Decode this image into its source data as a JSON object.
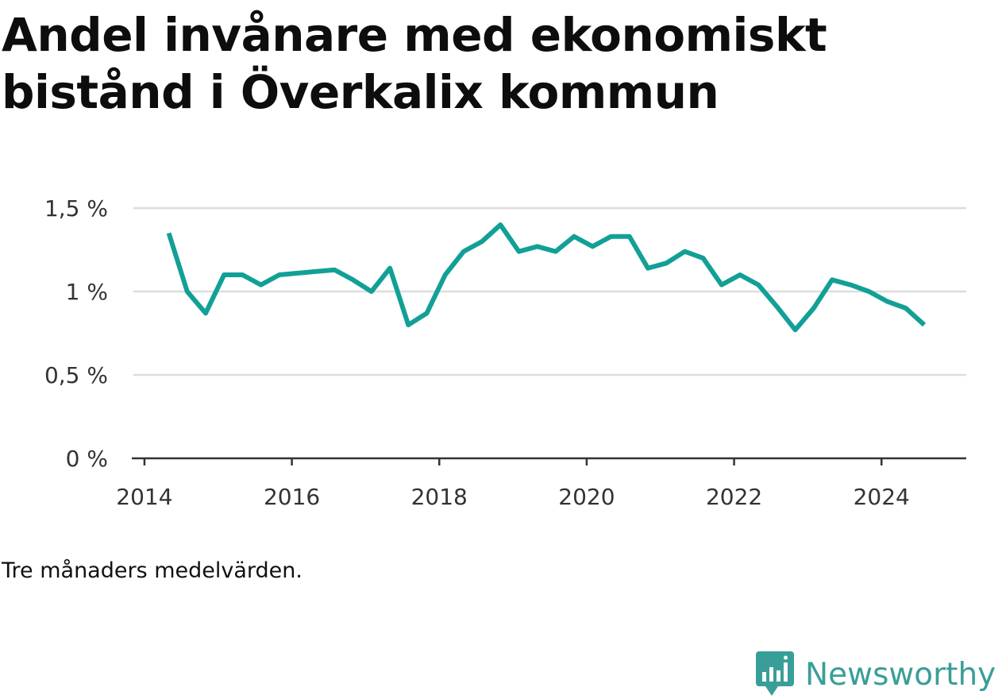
{
  "title": "Andel invånare med ekonomiskt bistånd i Överkalix kommun",
  "note": "Tre månaders medelvärden.",
  "brand": {
    "name": "Newsworthy",
    "logo_icon": "newsworthy-chart-bubble-icon",
    "color": "#3a9e98"
  },
  "chart_data": {
    "type": "line",
    "title": "Andel invånare med ekonomiskt bistånd i Överkalix kommun",
    "xlabel": "",
    "ylabel": "",
    "x_ticks": [
      2014,
      2016,
      2018,
      2020,
      2022,
      2024
    ],
    "y_ticks": [
      {
        "value": 0,
        "label": "0 %"
      },
      {
        "value": 0.5,
        "label": "0,5 %"
      },
      {
        "value": 1.0,
        "label": "1 %"
      },
      {
        "value": 1.5,
        "label": "1,5 %"
      }
    ],
    "xlim": [
      2013.85,
      2025.15
    ],
    "ylim": [
      0,
      1.5
    ],
    "grid": true,
    "line_color": "#12a096",
    "series": [
      {
        "x": [
          2014.33,
          2014.58,
          2014.83,
          2015.08,
          2015.33,
          2015.58,
          2015.83,
          2016.08,
          2016.33,
          2016.58,
          2016.83,
          2017.08,
          2017.33,
          2017.58,
          2017.83,
          2018.08,
          2018.33,
          2018.58,
          2018.83,
          2019.08,
          2019.33,
          2019.58,
          2019.83,
          2020.08,
          2020.33,
          2020.58,
          2020.83,
          2021.08,
          2021.33,
          2021.58,
          2021.83,
          2022.08,
          2022.33,
          2022.58,
          2022.83,
          2023.08,
          2023.33,
          2023.58,
          2023.83,
          2024.08,
          2024.33,
          2024.58
        ],
        "values": [
          1.35,
          1.0,
          0.87,
          1.1,
          1.1,
          1.04,
          1.1,
          1.11,
          1.12,
          1.13,
          1.07,
          1.0,
          1.14,
          0.8,
          0.87,
          1.1,
          1.24,
          1.3,
          1.4,
          1.24,
          1.27,
          1.24,
          1.33,
          1.27,
          1.33,
          1.33,
          1.14,
          1.17,
          1.24,
          1.2,
          1.04,
          1.1,
          1.04,
          0.91,
          0.77,
          0.9,
          1.07,
          1.04,
          1.0,
          0.94,
          0.9,
          0.8
        ]
      }
    ]
  }
}
